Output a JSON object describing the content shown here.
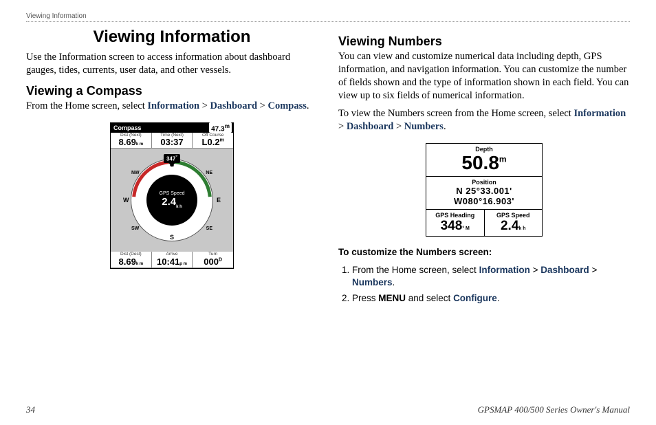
{
  "header": {
    "section": "Viewing Information"
  },
  "left": {
    "title": "Viewing Information",
    "intro": "Use the Information screen to access information about dashboard gauges, tides, currents, user data, and other vessels.",
    "h2": "Viewing a Compass",
    "lead": "From the Home screen, select ",
    "nav1": "Information",
    "gt1": " > ",
    "nav2": "Dashboard",
    "gt2": " > ",
    "nav3": "Compass",
    "period": ".",
    "compass": {
      "titlebar_left": "Compass",
      "titlebar_right": "47.3",
      "titlebar_right_unit": "m",
      "row_top": {
        "a_label": "Dist (Next)",
        "a_val": "8.69",
        "a_unit": "k m",
        "b_label": "Time (Next)",
        "b_val": "03:37",
        "c_label": "Off Course",
        "c_val": "L0.2",
        "c_unit": "m"
      },
      "heading": "347",
      "dirs": {
        "N": "N",
        "S": "S",
        "E": "E",
        "W": "W",
        "NE": "NE",
        "NW": "NW",
        "SE": "SE",
        "SW": "SW"
      },
      "center_label": "GPS Speed",
      "center_val": "2.4",
      "center_unit": "k h",
      "row_bot": {
        "a_label": "Dist (Dest)",
        "a_val": "8.69",
        "a_unit": "k m",
        "b_label": "Arrive",
        "b_val": "10:41",
        "b_unit": "p m",
        "c_label": "Turn",
        "c_val": "000",
        "c_unit": "D"
      }
    }
  },
  "right": {
    "h2": "Viewing Numbers",
    "p1": "You can view and customize numerical data including depth, GPS information, and navigation information. You can customize the number of fields shown and the type of information shown in each field. You can view up to six fields of numerical information.",
    "p2a": "To view the Numbers screen from the Home screen, select ",
    "nav1": "Information",
    "gt1": " > ",
    "nav2": "Dashboard",
    "gt2": " > ",
    "nav3": "Numbers",
    "period": ".",
    "numbers": {
      "depth_label": "Depth",
      "depth_val": "50.8",
      "depth_unit": "m",
      "pos_label": "Position",
      "pos_line1": "N  25°33.001'",
      "pos_line2": "W080°16.903'",
      "gh_label": "GPS Heading",
      "gh_val": "348",
      "gh_unit": "° M",
      "gs_label": "GPS Speed",
      "gs_val": "2.4",
      "gs_unit": "k h"
    },
    "customize_heading": "To customize the Numbers screen:",
    "step1a": "From the Home screen, select ",
    "s1_nav1": "Information",
    "s1_gt1": " > ",
    "s1_nav2": "Dashboard",
    "s1_gt2": " > ",
    "s1_nav3": "Numbers",
    "s1_period": ".",
    "step2a": "Press ",
    "step2b": "MENU",
    "step2c": " and select ",
    "step2d": "Configure",
    "step2e": "."
  },
  "footer": {
    "page": "34",
    "manual": "GPSMAP 400/500 Series Owner's Manual"
  }
}
